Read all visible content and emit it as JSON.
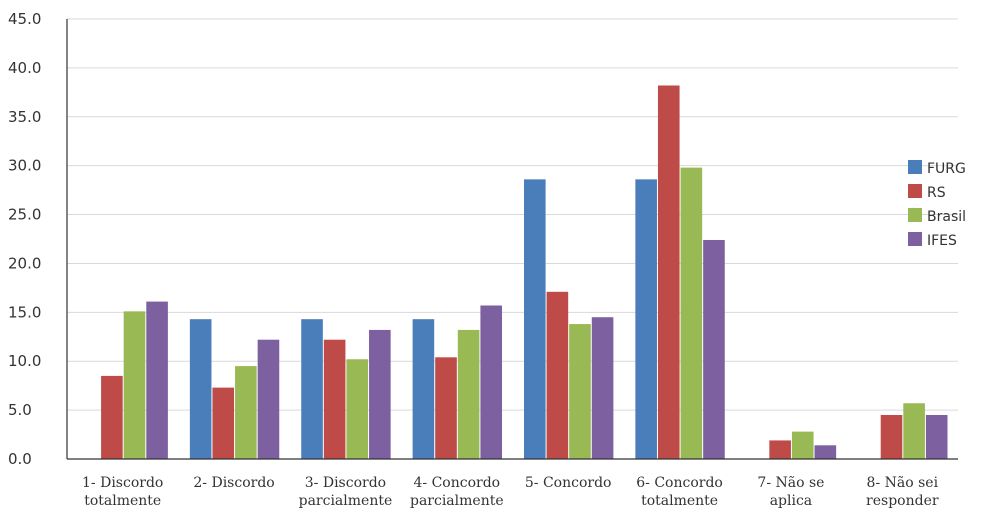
{
  "chart_data": {
    "type": "bar",
    "title": "",
    "xlabel": "",
    "ylabel": "",
    "ylim": [
      0,
      45
    ],
    "yticks": [
      "0.0",
      "5.0",
      "10.0",
      "15.0",
      "20.0",
      "25.0",
      "30.0",
      "35.0",
      "40.0",
      "45.0"
    ],
    "grid": true,
    "legend_position": "right",
    "categories": [
      [
        "1- Discordo",
        "totalmente"
      ],
      [
        "2- Discordo"
      ],
      [
        "3- Discordo",
        "parcialmente"
      ],
      [
        "4- Concordo",
        "parcialmente"
      ],
      [
        "5- Concordo"
      ],
      [
        "6- Concordo",
        "totalmente"
      ],
      [
        "7- Não se",
        "aplica"
      ],
      [
        "8- Não sei",
        "responder"
      ]
    ],
    "series": [
      {
        "name": "FURG",
        "color": "#4a7ebb",
        "values": [
          0,
          14.3,
          14.3,
          14.3,
          28.6,
          28.6,
          0,
          0
        ]
      },
      {
        "name": "RS",
        "color": "#be4b48",
        "values": [
          8.5,
          7.3,
          12.2,
          10.4,
          17.1,
          38.2,
          1.9,
          4.5
        ]
      },
      {
        "name": "Brasil",
        "color": "#98b954",
        "values": [
          15.1,
          9.5,
          10.2,
          13.2,
          13.8,
          29.8,
          2.8,
          5.7
        ]
      },
      {
        "name": "IFES",
        "color": "#7d60a0",
        "values": [
          16.1,
          12.2,
          13.2,
          15.7,
          14.5,
          22.4,
          1.4,
          4.5
        ]
      }
    ]
  }
}
